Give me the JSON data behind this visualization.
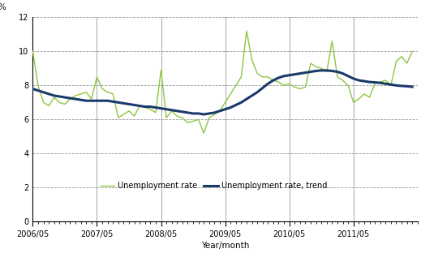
{
  "title": "",
  "ylabel": "%",
  "xlabel": "Year/month",
  "ylim": [
    0,
    12
  ],
  "yticks": [
    0,
    2,
    4,
    6,
    8,
    10,
    12
  ],
  "xtick_labels": [
    "2006/05",
    "2007/05",
    "2008/05",
    "2009/05",
    "2010/05",
    "2011/05"
  ],
  "line_color_rate": "#8DC63F",
  "line_color_trend": "#1A3A6B",
  "background_color": "#ffffff",
  "unemployment_rate": [
    10.0,
    8.0,
    7.0,
    6.8,
    7.3,
    7.0,
    6.9,
    7.2,
    7.4,
    7.5,
    7.6,
    7.2,
    8.5,
    7.8,
    7.6,
    7.5,
    6.1,
    6.3,
    6.5,
    6.2,
    6.8,
    6.7,
    6.6,
    6.4,
    8.9,
    6.1,
    6.5,
    6.2,
    6.1,
    5.8,
    5.9,
    6.0,
    5.2,
    6.1,
    6.3,
    6.5,
    7.0,
    7.5,
    8.0,
    8.5,
    11.2,
    9.5,
    8.7,
    8.5,
    8.5,
    8.3,
    8.2,
    8.0,
    8.1,
    7.9,
    7.8,
    7.9,
    9.3,
    9.1,
    9.0,
    8.8,
    10.6,
    8.5,
    8.3,
    8.0,
    7.0,
    7.2,
    7.5,
    7.3,
    8.1,
    8.2,
    8.3,
    8.0,
    9.4,
    9.7,
    9.3,
    10.0
  ],
  "unemployment_trend": [
    7.8,
    7.7,
    7.6,
    7.5,
    7.4,
    7.35,
    7.3,
    7.25,
    7.2,
    7.15,
    7.1,
    7.1,
    7.1,
    7.1,
    7.1,
    7.05,
    7.0,
    6.95,
    6.9,
    6.85,
    6.8,
    6.75,
    6.75,
    6.7,
    6.65,
    6.6,
    6.55,
    6.5,
    6.45,
    6.4,
    6.35,
    6.35,
    6.3,
    6.35,
    6.4,
    6.5,
    6.6,
    6.7,
    6.85,
    7.0,
    7.2,
    7.4,
    7.6,
    7.85,
    8.1,
    8.3,
    8.45,
    8.55,
    8.6,
    8.65,
    8.7,
    8.75,
    8.8,
    8.85,
    8.88,
    8.88,
    8.85,
    8.8,
    8.7,
    8.55,
    8.4,
    8.3,
    8.25,
    8.2,
    8.18,
    8.15,
    8.1,
    8.05,
    8.0,
    7.97,
    7.95,
    7.92
  ]
}
